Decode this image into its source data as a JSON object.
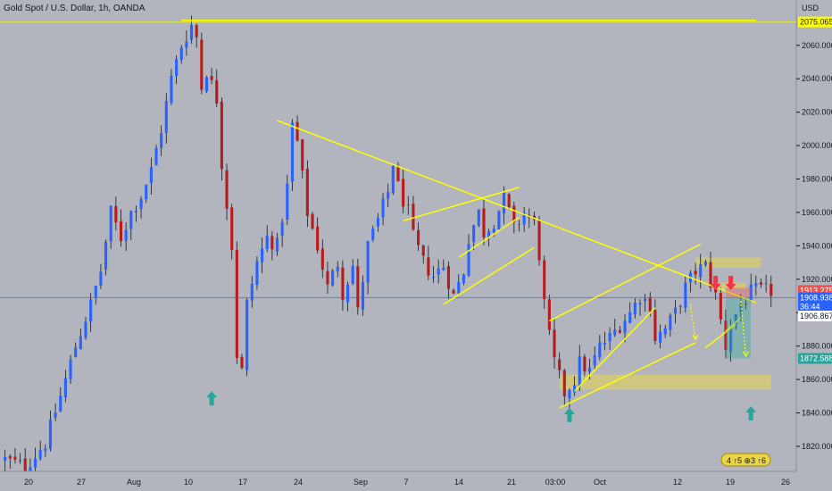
{
  "chart_data": {
    "type": "candlestick",
    "title": "Gold Spot / U.S. Dollar, 1h, OANDA",
    "currency": "USD",
    "ylim": [
      1805,
      2085
    ],
    "y_ticks": [
      1820,
      1840,
      1860,
      1880,
      1900,
      1920,
      1940,
      1960,
      1980,
      2000,
      2020,
      2040,
      2060
    ],
    "y_tick_labels": [
      "1820.000",
      "1840.000",
      "1860.000",
      "1880.000",
      "1900.000",
      "1920.000",
      "1940.000",
      "1960.000",
      "1980.000",
      "2000.000",
      "2020.000",
      "2040.000",
      "2060.000"
    ],
    "x_labels": [
      "20",
      "27",
      "Aug",
      "10",
      "17",
      "24",
      "Sep",
      "7",
      "14",
      "21",
      "03:00",
      "Oct",
      "12",
      "19",
      "26"
    ],
    "price_path": [
      [
        0,
        1812
      ],
      [
        4,
        1808
      ],
      [
        8,
        1822
      ],
      [
        11,
        1850
      ],
      [
        14,
        1880
      ],
      [
        17,
        1905
      ],
      [
        19,
        1925
      ],
      [
        21,
        1960
      ],
      [
        23,
        1945
      ],
      [
        25,
        1960
      ],
      [
        27,
        1970
      ],
      [
        29,
        1985
      ],
      [
        31,
        2010
      ],
      [
        33,
        2040
      ],
      [
        35,
        2060
      ],
      [
        37,
        2072
      ],
      [
        38,
        2065
      ],
      [
        39,
        2035
      ],
      [
        40,
        2045
      ],
      [
        42,
        2028
      ],
      [
        43,
        1990
      ],
      [
        45,
        1940
      ],
      [
        46,
        1875
      ],
      [
        47,
        1865
      ],
      [
        48,
        1905
      ],
      [
        50,
        1930
      ],
      [
        52,
        1945
      ],
      [
        54,
        1940
      ],
      [
        56,
        1975
      ],
      [
        57,
        2012
      ],
      [
        58,
        2002
      ],
      [
        60,
        1960
      ],
      [
        62,
        1940
      ],
      [
        64,
        1915
      ],
      [
        66,
        1930
      ],
      [
        67,
        1912
      ],
      [
        69,
        1928
      ],
      [
        70,
        1900
      ],
      [
        72,
        1940
      ],
      [
        74,
        1955
      ],
      [
        76,
        1972
      ],
      [
        77,
        1990
      ],
      [
        78,
        1975
      ],
      [
        80,
        1960
      ],
      [
        81,
        1945
      ],
      [
        83,
        1930
      ],
      [
        85,
        1922
      ],
      [
        87,
        1928
      ],
      [
        89,
        1910
      ],
      [
        91,
        1925
      ],
      [
        92,
        1945
      ],
      [
        94,
        1960
      ],
      [
        95,
        1948
      ],
      [
        97,
        1955
      ],
      [
        99,
        1968
      ],
      [
        100,
        1960
      ],
      [
        101,
        1950
      ],
      [
        103,
        1960
      ],
      [
        105,
        1953
      ],
      [
        106,
        1935
      ],
      [
        107,
        1905
      ],
      [
        108,
        1885
      ],
      [
        109,
        1870
      ],
      [
        111,
        1852
      ],
      [
        113,
        1860
      ],
      [
        114,
        1870
      ],
      [
        116,
        1865
      ],
      [
        118,
        1880
      ],
      [
        120,
        1885
      ],
      [
        122,
        1893
      ],
      [
        124,
        1900
      ],
      [
        126,
        1910
      ],
      [
        128,
        1905
      ],
      [
        129,
        1885
      ],
      [
        131,
        1890
      ],
      [
        133,
        1900
      ],
      [
        135,
        1915
      ],
      [
        137,
        1925
      ],
      [
        139,
        1928
      ],
      [
        140,
        1918
      ],
      [
        141,
        1910
      ],
      [
        142,
        1895
      ],
      [
        143,
        1880
      ],
      [
        144,
        1893
      ],
      [
        146,
        1905
      ],
      [
        148,
        1912
      ],
      [
        149,
        1913
      ]
    ],
    "price_tags": [
      {
        "value": 2074,
        "label": "2075.065",
        "color": "#ffff00",
        "text_color": "#131722"
      },
      {
        "value": 1913.3,
        "label": "1913.275",
        "color": "#ef5350",
        "text_color": "#ffffff"
      },
      {
        "value": 1909,
        "label": "1908.938",
        "color": "#2962ff",
        "text_color": "#ffffff"
      },
      {
        "value": 1903.5,
        "label": "36:44",
        "color": "#2962ff",
        "text_color": "#ffffff"
      },
      {
        "value": 1898,
        "label": "1906.867",
        "color": "#ffffff",
        "text_color": "#131722"
      },
      {
        "value": 1872.6,
        "label": "1872.588",
        "color": "#26a69a",
        "text_color": "#ffffff"
      }
    ],
    "horizontal_lines": [
      {
        "value": 2074,
        "color": "#ffff00"
      },
      {
        "value": 1909,
        "color": "#2962ff"
      }
    ],
    "trend_lines": [
      {
        "x1": 36,
        "y1": 2075,
        "x2": 150,
        "y2": 2075
      },
      {
        "x1": 55,
        "y1": 2015,
        "x2": 150,
        "y2": 1906
      },
      {
        "x1": 80,
        "y1": 1955,
        "x2": 103,
        "y2": 1975
      },
      {
        "x1": 91,
        "y1": 1933,
        "x2": 103,
        "y2": 1957
      },
      {
        "x1": 88,
        "y1": 1905,
        "x2": 106,
        "y2": 1939
      },
      {
        "x1": 109,
        "y1": 1895,
        "x2": 139,
        "y2": 1941
      },
      {
        "x1": 111,
        "y1": 1843,
        "x2": 138,
        "y2": 1882
      },
      {
        "x1": 114,
        "y1": 1853,
        "x2": 130,
        "y2": 1903
      },
      {
        "x1": 140,
        "y1": 1879,
        "x2": 146,
        "y2": 1893
      },
      {
        "x1": 144,
        "y1": 1889,
        "x2": 147,
        "y2": 1897
      }
    ],
    "zones": [
      {
        "x1": 111,
        "x2": 153,
        "y1": 1854,
        "y2": 1863,
        "color": "#e8d44d"
      },
      {
        "x1": 138,
        "x2": 151,
        "y1": 1927,
        "y2": 1933,
        "color": "#e8d44d"
      },
      {
        "x1": 143,
        "x2": 148,
        "y1": 1914,
        "y2": 1918,
        "color": "#e8d44d"
      }
    ],
    "position": {
      "x1": 144,
      "x2": 149,
      "entry": 1908.9,
      "stop": 1915,
      "target": 1872.6
    },
    "up_arrows": [
      {
        "x": 42,
        "price": 1853
      },
      {
        "x": 113,
        "price": 1843
      },
      {
        "x": 149,
        "price": 1844
      }
    ],
    "down_arrows": [
      {
        "x": 142,
        "price": 1922
      },
      {
        "x": 145,
        "price": 1922
      }
    ],
    "projections": [
      {
        "x1": 137,
        "y1": 1905,
        "x2": 138,
        "y2": 1884
      },
      {
        "x1": 147,
        "y1": 1907,
        "x2": 148,
        "y2": 1874
      }
    ],
    "n_bars": 153,
    "x_min": 0,
    "x_max": 158,
    "events_label": "4 ↑5 ⊕3 ↑6"
  }
}
